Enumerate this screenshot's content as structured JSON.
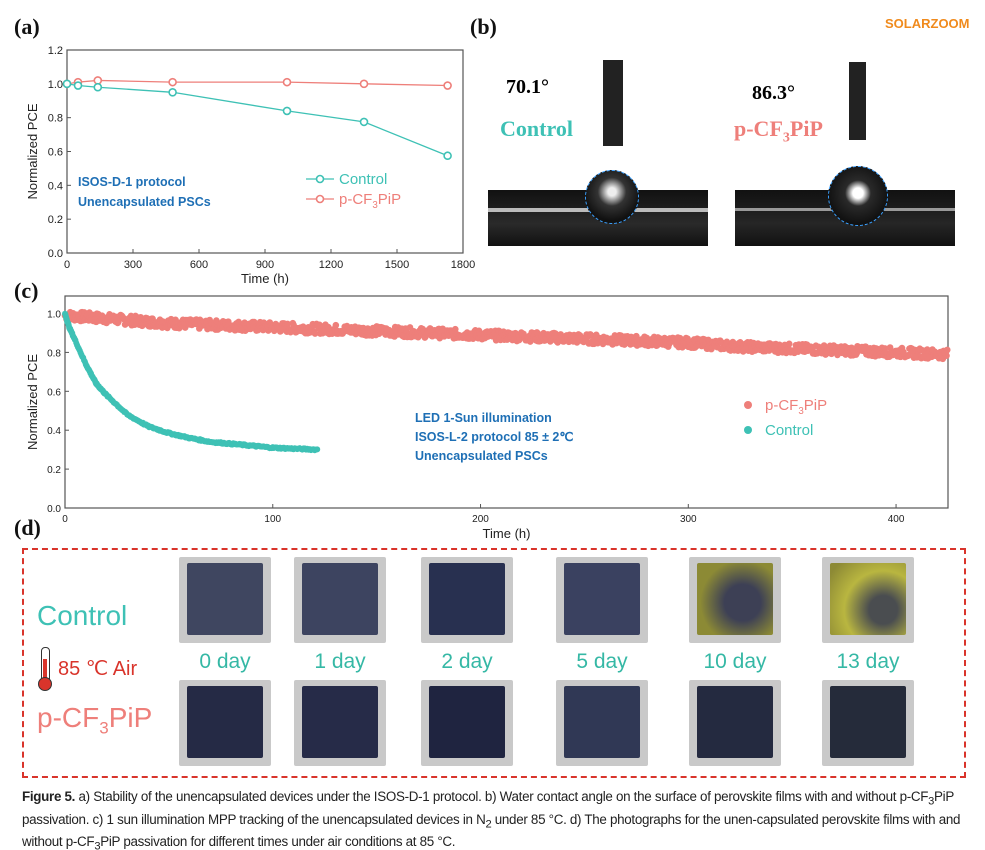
{
  "panel_labels": {
    "a": "(a)",
    "b": "(b)",
    "c": "(c)",
    "d": "(d)"
  },
  "colors": {
    "control": "#3ec1b5",
    "pcf3pip": "#ee7f7a",
    "annotation": "#1e6fb5",
    "frame_red": "#d9342b"
  },
  "chart_data": [
    {
      "type": "line",
      "panel": "a",
      "xlabel": "Time (h)",
      "ylabel": "Normalized PCE",
      "xlim": [
        0,
        1800
      ],
      "ylim": [
        0,
        1.2
      ],
      "xticks": [
        "0",
        "300",
        "600",
        "900",
        "1200",
        "1500",
        "1800"
      ],
      "yticks": [
        "0.0",
        "0.2",
        "0.4",
        "0.6",
        "0.8",
        "1.0",
        "1.2"
      ],
      "annotation": [
        "ISOS-D-1 protocol",
        "Unencapsulated PSCs"
      ],
      "legend_position": "center-right",
      "series": [
        {
          "name": "Control",
          "x": [
            0,
            50,
            140,
            480,
            1000,
            1350,
            1730
          ],
          "y": [
            1.0,
            0.99,
            0.98,
            0.95,
            0.84,
            0.775,
            0.575
          ]
        },
        {
          "name": "p-CF3PiP",
          "name_main": "p-CF",
          "name_sub": "3",
          "name_tail": "PiP",
          "x": [
            0,
            50,
            140,
            480,
            1000,
            1350,
            1730
          ],
          "y": [
            1.0,
            1.01,
            1.02,
            1.01,
            1.01,
            1.0,
            0.99
          ]
        }
      ]
    },
    {
      "type": "scatter",
      "panel": "c",
      "xlabel": "Time (h)",
      "ylabel": "Normalized PCE",
      "xlim": [
        0,
        425
      ],
      "ylim": [
        0,
        1.09
      ],
      "xticks": [
        "0",
        "100",
        "200",
        "300",
        "400"
      ],
      "yticks": [
        "0.0",
        "0.2",
        "0.4",
        "0.6",
        "0.8",
        "1.0"
      ],
      "annotation": [
        "LED 1-Sun illumination",
        "ISOS-L-2 protocol  85 ± 2℃",
        "Unencapsulated PSCs"
      ],
      "legend_position": "right",
      "series": [
        {
          "name": "p-CF3PiP",
          "name_main": "p-CF",
          "name_sub": "3",
          "name_tail": "PiP",
          "x": [
            0,
            25,
            50,
            75,
            100,
            125,
            150,
            175,
            200,
            225,
            250,
            275,
            300,
            325,
            350,
            375,
            400,
            425
          ],
          "y": [
            0.99,
            0.97,
            0.95,
            0.94,
            0.93,
            0.92,
            0.91,
            0.9,
            0.89,
            0.88,
            0.87,
            0.86,
            0.85,
            0.83,
            0.82,
            0.81,
            0.8,
            0.79
          ]
        },
        {
          "name": "Control",
          "x": [
            0,
            2,
            5,
            10,
            15,
            20,
            30,
            40,
            50,
            60,
            70,
            80,
            90,
            100,
            110,
            122
          ],
          "y": [
            1.0,
            0.93,
            0.86,
            0.74,
            0.64,
            0.58,
            0.48,
            0.42,
            0.385,
            0.36,
            0.34,
            0.33,
            0.32,
            0.31,
            0.305,
            0.3
          ]
        }
      ]
    }
  ],
  "contact_angle": [
    {
      "angle": "70.1°",
      "label": "Control"
    },
    {
      "angle": "86.3°",
      "label_main": "p-CF",
      "label_sub": "3",
      "label_tail": "PiP"
    }
  ],
  "photos": {
    "row_labels": {
      "control": "Control",
      "condition": "85 ℃ Air",
      "pcf_main": "p-CF",
      "pcf_sub": "3",
      "pcf_tail": "PiP"
    },
    "days": [
      "0 day",
      "1 day",
      "2 day",
      "5 day",
      "10 day",
      "13 day"
    ]
  },
  "caption": {
    "figure": "Figure 5.",
    "text1": " a) Stability of the unencapsulated devices under the ISOS-D-1 protocol. b) Water contact angle on the surface of perovskite films with and without p-CF",
    "sub1": "3",
    "text2": "PiP passivation. c) 1 sun illumination MPP tracking of the unencapsulated devices in N",
    "sub2": "2",
    "text3": " under 85 °C. d) The photographs for the unen-capsulated perovskite films with and without p-CF",
    "sub3": "3",
    "text4": "PiP passivation for different times under air conditions at 85 °C."
  },
  "watermark": "SOLARZOOM"
}
